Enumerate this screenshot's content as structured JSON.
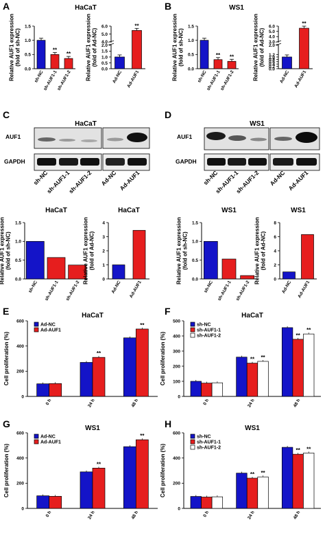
{
  "colors": {
    "blue": "#1414c8",
    "red": "#e61e1e",
    "white": "#ffffff",
    "black": "#000000"
  },
  "labels": {
    "A": "A",
    "B": "B",
    "C": "C",
    "D": "D",
    "E": "E",
    "F": "F",
    "G": "G",
    "H": "H",
    "hacat": "HaCaT",
    "ws1": "WS1",
    "ylab_shnc_1": "Relative AUF1 expression",
    "ylab_shnc_2": "(fold of sh-NC)",
    "ylab_adnc_1": "Relative AUF1 expression",
    "ylab_adnc_2": "(fold of Ad-NC)",
    "ylab_prolif": "Cell proliferation (%)",
    "sig": "**",
    "auf1": "AUF1",
    "gapdh": "GAPDH",
    "sh_nc": "sh-NC",
    "sh_auf1_1": "sh-AUF1-1",
    "sh_auf1_2": "sh-AUF1-2",
    "ad_nc": "Ad-NC",
    "ad_auf1": "Ad-AUF1"
  },
  "chart_data": [
    {
      "id": "A1",
      "type": "bar",
      "title": "HaCaT",
      "categories": [
        "sh-NC",
        "sh-AUF1-1",
        "sh-AUF1-2"
      ],
      "values": [
        1.0,
        0.5,
        0.36
      ],
      "ylim": [
        0,
        1.5
      ],
      "yticks": [
        0.0,
        0.5,
        1.0,
        1.5
      ],
      "sig": [
        null,
        "**",
        "**"
      ],
      "colors": [
        "blue",
        "red",
        "red"
      ],
      "ylabel": [
        "Relative AUF1 expression",
        "(fold of sh-NC)"
      ]
    },
    {
      "id": "A2",
      "type": "bar",
      "categories": [
        "Ad-NC",
        "Ad-AUF1"
      ],
      "values": [
        1.0,
        5.45
      ],
      "yticks": [
        0.0,
        0.5,
        1.0,
        1.5,
        2.0,
        4.0,
        5.0,
        6.0
      ],
      "broken_axis": true,
      "sig": [
        null,
        "**"
      ],
      "colors": [
        "blue",
        "red"
      ],
      "ylabel": [
        "Relative AUF1 expression",
        "(fold of Ad-NC)"
      ]
    },
    {
      "id": "B1",
      "type": "bar",
      "title": "WS1",
      "categories": [
        "sh-NC",
        "sh-AUF1-1",
        "sh-AUF1-2"
      ],
      "values": [
        1.0,
        0.32,
        0.26
      ],
      "ylim": [
        0,
        1.5
      ],
      "yticks": [
        0.0,
        0.5,
        1.0,
        1.5
      ],
      "sig": [
        null,
        "**",
        "**"
      ],
      "colors": [
        "blue",
        "red",
        "red"
      ],
      "ylabel": [
        "Relative AUF1 expression",
        "(fold of sh-NC)"
      ]
    },
    {
      "id": "B2",
      "type": "bar",
      "categories": [
        "Ad-NC",
        "Ad-AUF1"
      ],
      "values": [
        1.0,
        5.6
      ],
      "yticks": [
        0.0,
        0.2,
        0.4,
        0.6,
        0.8,
        1.0,
        1.2,
        2.0,
        3.0,
        4.0,
        5.0,
        6.0
      ],
      "broken_axis": true,
      "sig": [
        null,
        "**"
      ],
      "colors": [
        "blue",
        "red"
      ],
      "ylabel": [
        "Relative AUF1 expression",
        "(fold of Ad-NC)"
      ]
    },
    {
      "id": "C1",
      "type": "bar",
      "title": "HaCaT",
      "categories": [
        "sh-NC",
        "sh-AUF1-1",
        "sh-AUF1-2"
      ],
      "values": [
        1.0,
        0.57,
        0.37
      ],
      "ylim": [
        0,
        1.5
      ],
      "yticks": [
        0.0,
        0.5,
        1.0,
        1.5
      ],
      "colors": [
        "blue",
        "red",
        "red"
      ],
      "ylabel": [
        "Relative AUF1 expression",
        "(fold of sh-NC)"
      ]
    },
    {
      "id": "C2",
      "type": "bar",
      "title": "HaCaT",
      "categories": [
        "Ad-NC",
        "Ad-AUF1"
      ],
      "values": [
        1.0,
        3.45
      ],
      "ylim": [
        0,
        4
      ],
      "yticks": [
        0,
        1,
        2,
        3,
        4
      ],
      "colors": [
        "blue",
        "red"
      ],
      "ylabel": [
        "Relative AUF1 expression",
        "(fold of Ad-NC)"
      ]
    },
    {
      "id": "D1",
      "type": "bar",
      "title": "WS1",
      "categories": [
        "sh-NC",
        "sh-AUF1-1",
        "sh-AUF1-2"
      ],
      "values": [
        1.0,
        0.53,
        0.09
      ],
      "ylim": [
        0,
        1.5
      ],
      "yticks": [
        0.0,
        0.5,
        1.0,
        1.5
      ],
      "colors": [
        "blue",
        "red",
        "red"
      ],
      "ylabel": [
        "Relative AUF1 expression",
        "(fold of sh-NC)"
      ]
    },
    {
      "id": "D2",
      "type": "bar",
      "title": "WS1",
      "categories": [
        "Ad-NC",
        "Ad-AUF1"
      ],
      "values": [
        1.0,
        6.3
      ],
      "ylim": [
        0,
        8
      ],
      "yticks": [
        0,
        2,
        4,
        6,
        8
      ],
      "colors": [
        "blue",
        "red"
      ],
      "ylabel": [
        "Relative AUF1 expression",
        "(fold of Ad-NC)"
      ]
    },
    {
      "id": "E",
      "type": "bar",
      "title": "HaCaT",
      "categories": [
        "0 h",
        "24 h",
        "48 h"
      ],
      "series": [
        {
          "name": "Ad-NC",
          "values": [
            100,
            270,
            465
          ],
          "color": "blue"
        },
        {
          "name": "Ad-AUF1",
          "values": [
            102,
            310,
            535
          ],
          "color": "red",
          "sig": [
            null,
            "**",
            "**"
          ]
        }
      ],
      "ylim": [
        0,
        600
      ],
      "yticks": [
        0,
        200,
        400,
        600
      ],
      "ylabel": "Cell proliferation (%)",
      "legend": "top-left"
    },
    {
      "id": "F",
      "type": "bar",
      "title": "HaCaT",
      "categories": [
        "0 h",
        "24 h",
        "48 h"
      ],
      "series": [
        {
          "name": "sh-NC",
          "values": [
            100,
            260,
            455
          ],
          "color": "blue"
        },
        {
          "name": "sh-AUF1-1",
          "values": [
            88,
            220,
            378
          ],
          "color": "red",
          "sig": [
            null,
            "**",
            "**"
          ]
        },
        {
          "name": "sh-AUF1-2",
          "values": [
            90,
            232,
            413
          ],
          "color": "white",
          "sig": [
            null,
            "**",
            "**"
          ]
        }
      ],
      "ylim": [
        0,
        500
      ],
      "yticks": [
        0,
        100,
        200,
        300,
        400,
        500
      ],
      "ylabel": "Cell proliferation (%)",
      "legend": "top-left"
    },
    {
      "id": "G",
      "type": "bar",
      "title": "WS1",
      "categories": [
        "0 h",
        "24 h",
        "48 h"
      ],
      "series": [
        {
          "name": "Ad-NC",
          "values": [
            100,
            290,
            490
          ],
          "color": "blue"
        },
        {
          "name": "Ad-AUF1",
          "values": [
            96,
            320,
            545
          ],
          "color": "red",
          "sig": [
            null,
            "**",
            "**"
          ]
        }
      ],
      "ylim": [
        0,
        600
      ],
      "yticks": [
        0,
        200,
        400,
        600
      ],
      "ylabel": "Cell proliferation (%)",
      "legend": "top-left"
    },
    {
      "id": "H",
      "type": "bar",
      "title": "WS1",
      "categories": [
        "0 h",
        "24 h",
        "48 h"
      ],
      "series": [
        {
          "name": "sh-NC",
          "values": [
            95,
            280,
            485
          ],
          "color": "blue"
        },
        {
          "name": "sh-AUF1-1",
          "values": [
            90,
            240,
            430
          ],
          "color": "red",
          "sig": [
            null,
            "**",
            "**"
          ]
        },
        {
          "name": "sh-AUF1-2",
          "values": [
            92,
            250,
            440
          ],
          "color": "white",
          "sig": [
            null,
            "**",
            "**"
          ]
        }
      ],
      "ylim": [
        0,
        600
      ],
      "yticks": [
        0,
        200,
        400,
        600
      ],
      "ylabel": "Cell proliferation (%)",
      "legend": "top-left"
    }
  ]
}
